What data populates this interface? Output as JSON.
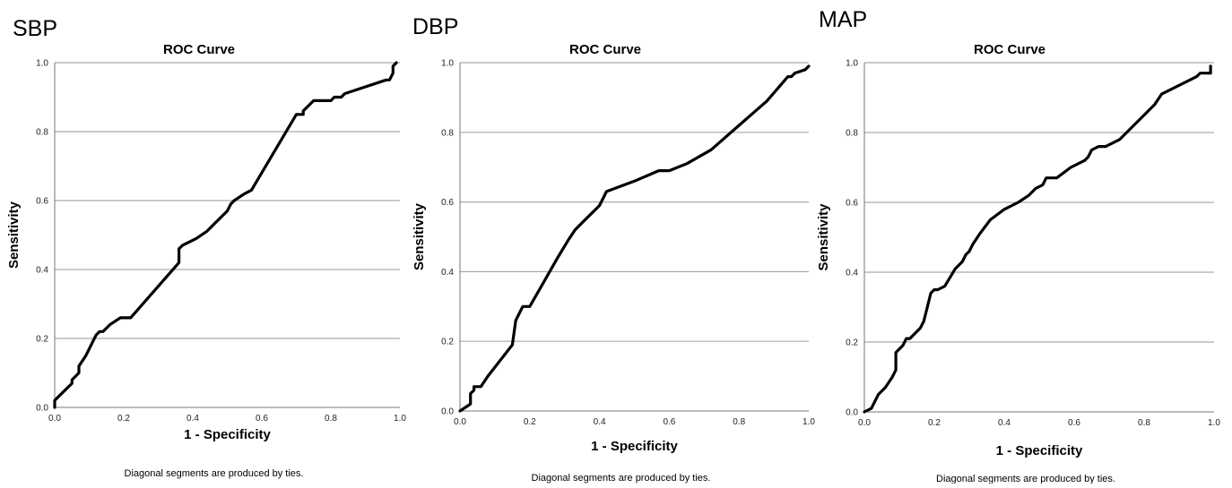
{
  "panels": [
    {
      "label": "SBP"
    },
    {
      "label": "DBP"
    },
    {
      "label": "MAP"
    }
  ],
  "colors": {
    "curve": "#000000",
    "grid": "#aaaaaa",
    "axis": "#777777",
    "background": "#ffffff"
  },
  "chart_data": [
    {
      "type": "line",
      "title": "ROC Curve",
      "xlabel": "1 - Specificity",
      "ylabel": "Sensitivity",
      "footnote": "Diagonal segments are produced by ties.",
      "xlim": [
        0,
        1
      ],
      "ylim": [
        0,
        1
      ],
      "xticks": [
        "0.0",
        "0.2",
        "0.4",
        "0.6",
        "0.8",
        "1.0"
      ],
      "yticks": [
        "0.0",
        "0.2",
        "0.4",
        "0.6",
        "0.8",
        "1.0"
      ],
      "grid": "horizontal",
      "series": [
        {
          "x": [
            0,
            0,
            0.01,
            0.03,
            0.05,
            0.05,
            0.06,
            0.07,
            0.07,
            0.09,
            0.11,
            0.12,
            0.13,
            0.14,
            0.16,
            0.19,
            0.2,
            0.22,
            0.36,
            0.36,
            0.37,
            0.39,
            0.41,
            0.44,
            0.47,
            0.5,
            0.51,
            0.52,
            0.55,
            0.57,
            0.7,
            0.72,
            0.72,
            0.75,
            0.78,
            0.8,
            0.81,
            0.83,
            0.84,
            0.96,
            0.97,
            0.98,
            0.98,
            0.99
          ],
          "y": [
            0,
            0.02,
            0.03,
            0.05,
            0.07,
            0.08,
            0.09,
            0.1,
            0.12,
            0.15,
            0.19,
            0.21,
            0.22,
            0.22,
            0.24,
            0.26,
            0.26,
            0.26,
            0.42,
            0.46,
            0.47,
            0.48,
            0.49,
            0.51,
            0.54,
            0.57,
            0.59,
            0.6,
            0.62,
            0.63,
            0.85,
            0.85,
            0.86,
            0.89,
            0.89,
            0.89,
            0.9,
            0.9,
            0.91,
            0.95,
            0.95,
            0.97,
            0.99,
            1
          ]
        }
      ]
    },
    {
      "type": "line",
      "title": "ROC Curve",
      "xlabel": "1 - Specificity",
      "ylabel": "Sensitivity",
      "footnote": "Diagonal segments are produced by ties.",
      "xlim": [
        0,
        1
      ],
      "ylim": [
        0,
        1
      ],
      "xticks": [
        "0.0",
        "0.2",
        "0.4",
        "0.6",
        "0.8",
        "1.0"
      ],
      "yticks": [
        "0.0",
        "0.2",
        "0.4",
        "0.6",
        "0.8",
        "1.0"
      ],
      "grid": "horizontal",
      "series": [
        {
          "x": [
            0,
            0.03,
            0.03,
            0.04,
            0.04,
            0.05,
            0.06,
            0.08,
            0.15,
            0.16,
            0.18,
            0.2,
            0.24,
            0.28,
            0.31,
            0.33,
            0.35,
            0.36,
            0.38,
            0.4,
            0.42,
            0.5,
            0.57,
            0.6,
            0.65,
            0.72,
            0.8,
            0.88,
            0.94,
            0.95,
            0.96,
            0.99,
            1
          ],
          "y": [
            0,
            0.02,
            0.05,
            0.06,
            0.07,
            0.07,
            0.07,
            0.1,
            0.19,
            0.26,
            0.3,
            0.3,
            0.37,
            0.44,
            0.49,
            0.52,
            0.54,
            0.55,
            0.57,
            0.59,
            0.63,
            0.66,
            0.69,
            0.69,
            0.71,
            0.75,
            0.82,
            0.89,
            0.96,
            0.96,
            0.97,
            0.98,
            0.99
          ]
        }
      ]
    },
    {
      "type": "line",
      "title": "ROC Curve",
      "xlabel": "1 - Specificity",
      "ylabel": "Sensitivity",
      "footnote": "Diagonal segments are produced by ties.",
      "xlim": [
        0,
        1
      ],
      "ylim": [
        0,
        1
      ],
      "xticks": [
        "0.0",
        "0.2",
        "0.4",
        "0.6",
        "0.8",
        "1.0"
      ],
      "yticks": [
        "0.0",
        "0.2",
        "0.4",
        "0.6",
        "0.8",
        "1.0"
      ],
      "grid": "horizontal",
      "series": [
        {
          "x": [
            0,
            0.02,
            0.03,
            0.04,
            0.05,
            0.06,
            0.08,
            0.09,
            0.09,
            0.1,
            0.11,
            0.12,
            0.13,
            0.14,
            0.15,
            0.16,
            0.17,
            0.18,
            0.19,
            0.2,
            0.21,
            0.23,
            0.26,
            0.28,
            0.29,
            0.3,
            0.31,
            0.33,
            0.36,
            0.4,
            0.44,
            0.47,
            0.49,
            0.51,
            0.52,
            0.55,
            0.59,
            0.63,
            0.64,
            0.65,
            0.67,
            0.69,
            0.71,
            0.73,
            0.78,
            0.83,
            0.85,
            0.95,
            0.96,
            0.99,
            0.99
          ],
          "y": [
            0,
            0.01,
            0.03,
            0.05,
            0.06,
            0.07,
            0.1,
            0.12,
            0.17,
            0.18,
            0.19,
            0.21,
            0.21,
            0.22,
            0.23,
            0.24,
            0.26,
            0.3,
            0.34,
            0.35,
            0.35,
            0.36,
            0.41,
            0.43,
            0.45,
            0.46,
            0.48,
            0.51,
            0.55,
            0.58,
            0.6,
            0.62,
            0.64,
            0.65,
            0.67,
            0.67,
            0.7,
            0.72,
            0.73,
            0.75,
            0.76,
            0.76,
            0.77,
            0.78,
            0.83,
            0.88,
            0.91,
            0.96,
            0.97,
            0.97,
            0.99
          ]
        }
      ]
    }
  ]
}
